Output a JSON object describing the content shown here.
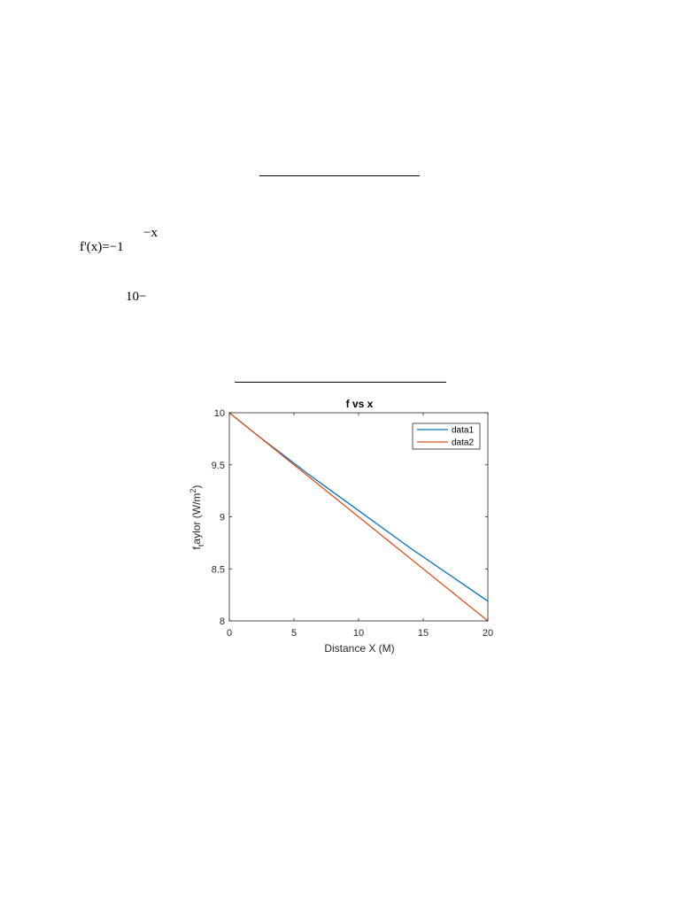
{
  "document": {
    "eq_main": "f'(x)=−1",
    "eq_sup": "−x",
    "eq_second": "10−"
  },
  "colors": {
    "data1": "#0072BD",
    "data2": "#D95319",
    "axis": "#262626",
    "legend_border": "#262626"
  },
  "chart_data": {
    "type": "line",
    "title": "f vs x",
    "xlabel": "Distance X (M)",
    "ylabel_main": "f",
    "ylabel_sub": "t",
    "ylabel_rest": "aylor (W/m",
    "ylabel_sup": "2",
    "ylabel_close": ")",
    "xlim": [
      0,
      20
    ],
    "ylim": [
      8,
      10
    ],
    "xticks": [
      0,
      5,
      10,
      15,
      20
    ],
    "yticks": [
      8,
      8.5,
      9,
      9.5,
      10
    ],
    "xtick_labels": [
      "0",
      "5",
      "10",
      "15",
      "20"
    ],
    "ytick_labels": [
      "8",
      "8.5",
      "9",
      "9.5",
      "10"
    ],
    "grid": false,
    "legend": "top-right",
    "x": [
      0,
      2,
      4,
      6,
      8,
      10,
      12,
      14,
      16,
      18,
      20
    ],
    "series": [
      {
        "name": "data1",
        "values": [
          10,
          9.8,
          9.61,
          9.42,
          9.24,
          9.06,
          8.88,
          8.7,
          8.53,
          8.36,
          8.19
        ]
      },
      {
        "name": "data2",
        "values": [
          10,
          9.8,
          9.6,
          9.4,
          9.2,
          9.0,
          8.8,
          8.6,
          8.4,
          8.2,
          8.0
        ]
      }
    ]
  }
}
